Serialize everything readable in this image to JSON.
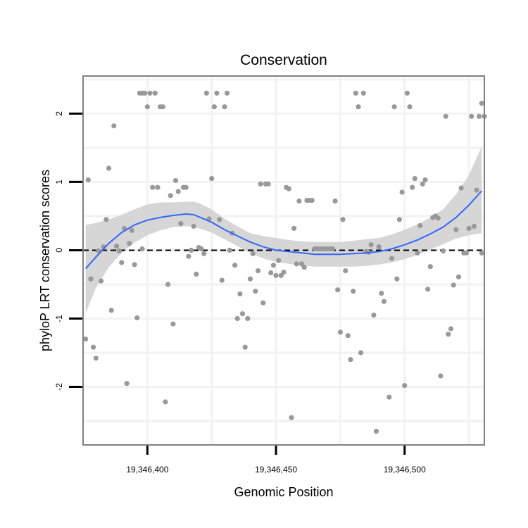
{
  "chart_data": {
    "type": "scatter",
    "title": "Conservation",
    "xlabel": "Genomic Position",
    "ylabel": "phyloP LRT conservation scores",
    "xlim": [
      19346375,
      19346531
    ],
    "ylim": [
      -2.85,
      2.55
    ],
    "x_ticks": [
      {
        "value": 19346400,
        "label": "19,346,400"
      },
      {
        "value": 19346450,
        "label": "19,346,450"
      },
      {
        "value": 19346500,
        "label": "19,346,500"
      }
    ],
    "y_ticks": [
      {
        "value": 2,
        "label": "2"
      },
      {
        "value": 1,
        "label": "1"
      },
      {
        "value": 0,
        "label": "0"
      },
      {
        "value": -1,
        "label": "-1"
      },
      {
        "value": -2,
        "label": "-2"
      }
    ],
    "reference_line": {
      "y": 0,
      "style": "dashed",
      "color": "#000000"
    },
    "colors": {
      "points": "#999999",
      "smooth_line": "#3366ff",
      "confidence_band": "#d6d6d6",
      "panel_border": "#808080",
      "grid": "#f2f2f2"
    },
    "points": [
      {
        "x": 19346376,
        "y": -1.3
      },
      {
        "x": 19346377,
        "y": 1.03
      },
      {
        "x": 19346378,
        "y": -0.42
      },
      {
        "x": 19346379,
        "y": -1.42
      },
      {
        "x": 19346380,
        "y": -1.58
      },
      {
        "x": 19346381,
        "y": -0.01
      },
      {
        "x": 19346382,
        "y": -0.45
      },
      {
        "x": 19346383,
        "y": 0.05
      },
      {
        "x": 19346384,
        "y": 0.45
      },
      {
        "x": 19346385,
        "y": 1.2
      },
      {
        "x": 19346386,
        "y": -0.88
      },
      {
        "x": 19346387,
        "y": 1.82
      },
      {
        "x": 19346388,
        "y": 0.06
      },
      {
        "x": 19346389,
        "y": -0.01
      },
      {
        "x": 19346390,
        "y": -0.18
      },
      {
        "x": 19346391,
        "y": 0.32
      },
      {
        "x": 19346392,
        "y": -1.95
      },
      {
        "x": 19346393,
        "y": 0.1
      },
      {
        "x": 19346394,
        "y": 0.29
      },
      {
        "x": 19346395,
        "y": -0.21
      },
      {
        "x": 19346396,
        "y": -0.99
      },
      {
        "x": 19346397,
        "y": 2.3
      },
      {
        "x": 19346398,
        "y": 0.02
      },
      {
        "x": 19346398,
        "y": 2.3
      },
      {
        "x": 19346399,
        "y": 2.3
      },
      {
        "x": 19346400,
        "y": 2.1
      },
      {
        "x": 19346401,
        "y": 2.3
      },
      {
        "x": 19346402,
        "y": 0.92
      },
      {
        "x": 19346403,
        "y": 2.3
      },
      {
        "x": 19346404,
        "y": 0.92
      },
      {
        "x": 19346405,
        "y": 2.1
      },
      {
        "x": 19346406,
        "y": 2.1
      },
      {
        "x": 19346407,
        "y": -2.22
      },
      {
        "x": 19346408,
        "y": -0.5
      },
      {
        "x": 19346409,
        "y": 0.8
      },
      {
        "x": 19346410,
        "y": -1.08
      },
      {
        "x": 19346411,
        "y": 1.02
      },
      {
        "x": 19346412,
        "y": 0.86
      },
      {
        "x": 19346413,
        "y": 0.39
      },
      {
        "x": 19346414,
        "y": 0.92
      },
      {
        "x": 19346415,
        "y": 0.92
      },
      {
        "x": 19346416,
        "y": -0.09
      },
      {
        "x": 19346417,
        "y": 0.0
      },
      {
        "x": 19346418,
        "y": 0.35
      },
      {
        "x": 19346419,
        "y": -0.35
      },
      {
        "x": 19346420,
        "y": 0.04
      },
      {
        "x": 19346421,
        "y": 0.02
      },
      {
        "x": 19346422,
        "y": -0.05
      },
      {
        "x": 19346423,
        "y": 2.3
      },
      {
        "x": 19346424,
        "y": 0.46
      },
      {
        "x": 19346425,
        "y": 1.05
      },
      {
        "x": 19346426,
        "y": 2.1
      },
      {
        "x": 19346427,
        "y": 2.3
      },
      {
        "x": 19346428,
        "y": 0.45
      },
      {
        "x": 19346429,
        "y": -0.44
      },
      {
        "x": 19346430,
        "y": 2.1
      },
      {
        "x": 19346431,
        "y": 2.3
      },
      {
        "x": 19346432,
        "y": 0.0
      },
      {
        "x": 19346433,
        "y": 0.25
      },
      {
        "x": 19346434,
        "y": -0.22
      },
      {
        "x": 19346435,
        "y": -1.0
      },
      {
        "x": 19346436,
        "y": -0.64
      },
      {
        "x": 19346437,
        "y": -0.93
      },
      {
        "x": 19346438,
        "y": -1.42
      },
      {
        "x": 19346439,
        "y": -1.0
      },
      {
        "x": 19346440,
        "y": -0.42
      },
      {
        "x": 19346441,
        "y": -0.05
      },
      {
        "x": 19346442,
        "y": -0.6
      },
      {
        "x": 19346443,
        "y": -0.3
      },
      {
        "x": 19346444,
        "y": 0.97
      },
      {
        "x": 19346445,
        "y": -0.77
      },
      {
        "x": 19346446,
        "y": 0.97
      },
      {
        "x": 19346447,
        "y": 0.97
      },
      {
        "x": 19346448,
        "y": -0.33
      },
      {
        "x": 19346449,
        "y": -0.22
      },
      {
        "x": 19346450,
        "y": -0.37
      },
      {
        "x": 19346451,
        "y": -0.15
      },
      {
        "x": 19346452,
        "y": -0.37
      },
      {
        "x": 19346453,
        "y": -0.32
      },
      {
        "x": 19346454,
        "y": 0.92
      },
      {
        "x": 19346455,
        "y": 0.9
      },
      {
        "x": 19346456,
        "y": -2.45
      },
      {
        "x": 19346457,
        "y": 0.32
      },
      {
        "x": 19346458,
        "y": -0.2
      },
      {
        "x": 19346459,
        "y": 0.72
      },
      {
        "x": 19346460,
        "y": -0.2
      },
      {
        "x": 19346461,
        "y": -0.25
      },
      {
        "x": 19346462,
        "y": 0.73
      },
      {
        "x": 19346463,
        "y": 0.73
      },
      {
        "x": 19346464,
        "y": 0.73
      },
      {
        "x": 19346465,
        "y": 0.02
      },
      {
        "x": 19346466,
        "y": 0.02
      },
      {
        "x": 19346467,
        "y": 0.02
      },
      {
        "x": 19346468,
        "y": 0.02
      },
      {
        "x": 19346469,
        "y": 0.02
      },
      {
        "x": 19346470,
        "y": 0.02
      },
      {
        "x": 19346471,
        "y": 0.02
      },
      {
        "x": 19346472,
        "y": 0.02
      },
      {
        "x": 19346473,
        "y": 0.72
      },
      {
        "x": 19346474,
        "y": -0.58
      },
      {
        "x": 19346475,
        "y": -1.2
      },
      {
        "x": 19346476,
        "y": 0.45
      },
      {
        "x": 19346477,
        "y": -0.3
      },
      {
        "x": 19346478,
        "y": -1.25
      },
      {
        "x": 19346479,
        "y": -1.6
      },
      {
        "x": 19346480,
        "y": -0.6
      },
      {
        "x": 19346481,
        "y": 2.3
      },
      {
        "x": 19346482,
        "y": 2.1
      },
      {
        "x": 19346483,
        "y": -1.5
      },
      {
        "x": 19346484,
        "y": 2.3
      },
      {
        "x": 19346485,
        "y": -0.02
      },
      {
        "x": 19346486,
        "y": -0.03
      },
      {
        "x": 19346487,
        "y": 0.08
      },
      {
        "x": 19346488,
        "y": -0.95
      },
      {
        "x": 19346489,
        "y": -2.65
      },
      {
        "x": 19346490,
        "y": 0.05
      },
      {
        "x": 19346491,
        "y": -0.63
      },
      {
        "x": 19346492,
        "y": -0.75
      },
      {
        "x": 19346494,
        "y": -2.15
      },
      {
        "x": 19346495,
        "y": -0.12
      },
      {
        "x": 19346496,
        "y": 2.1
      },
      {
        "x": 19346497,
        "y": -0.42
      },
      {
        "x": 19346498,
        "y": 0.45
      },
      {
        "x": 19346499,
        "y": 0.85
      },
      {
        "x": 19346500,
        "y": -1.98
      },
      {
        "x": 19346501,
        "y": 2.3
      },
      {
        "x": 19346502,
        "y": 2.1
      },
      {
        "x": 19346503,
        "y": 0.92
      },
      {
        "x": 19346504,
        "y": 1.05
      },
      {
        "x": 19346505,
        "y": -0.04
      },
      {
        "x": 19346506,
        "y": 0.36
      },
      {
        "x": 19346507,
        "y": 0.97
      },
      {
        "x": 19346508,
        "y": 1.03
      },
      {
        "x": 19346509,
        "y": -0.57
      },
      {
        "x": 19346510,
        "y": -0.24
      },
      {
        "x": 19346511,
        "y": 0.48
      },
      {
        "x": 19346512,
        "y": 0.5
      },
      {
        "x": 19346513,
        "y": 0.47
      },
      {
        "x": 19346514,
        "y": -1.84
      },
      {
        "x": 19346515,
        "y": -0.01
      },
      {
        "x": 19346516,
        "y": 1.96
      },
      {
        "x": 19346517,
        "y": -1.23
      },
      {
        "x": 19346518,
        "y": -1.15
      },
      {
        "x": 19346519,
        "y": -0.51
      },
      {
        "x": 19346520,
        "y": 0.3
      },
      {
        "x": 19346521,
        "y": -0.39
      },
      {
        "x": 19346522,
        "y": 0.91
      },
      {
        "x": 19346523,
        "y": -0.04
      },
      {
        "x": 19346524,
        "y": -0.04
      },
      {
        "x": 19346525,
        "y": 0.32
      },
      {
        "x": 19346526,
        "y": 1.96
      },
      {
        "x": 19346527,
        "y": 0.35
      },
      {
        "x": 19346528,
        "y": 0.88
      },
      {
        "x": 19346529,
        "y": 1.96
      },
      {
        "x": 19346530,
        "y": -0.04
      },
      {
        "x": 19346530,
        "y": 2.15
      },
      {
        "x": 19346531,
        "y": 1.96
      }
    ],
    "smooth_fit": {
      "method": "loess",
      "x": [
        19346376,
        19346380,
        19346385,
        19346390,
        19346395,
        19346400,
        19346405,
        19346410,
        19346415,
        19346418,
        19346420,
        19346425,
        19346430,
        19346435,
        19346440,
        19346445,
        19346450,
        19346455,
        19346460,
        19346465,
        19346470,
        19346475,
        19346480,
        19346485,
        19346490,
        19346495,
        19346500,
        19346505,
        19346510,
        19346515,
        19346520,
        19346525,
        19346530
      ],
      "y": [
        -0.27,
        -0.1,
        0.1,
        0.26,
        0.37,
        0.44,
        0.48,
        0.51,
        0.53,
        0.52,
        0.49,
        0.41,
        0.3,
        0.21,
        0.12,
        0.05,
        0.0,
        -0.02,
        -0.04,
        -0.06,
        -0.06,
        -0.06,
        -0.05,
        -0.04,
        -0.02,
        0.02,
        0.08,
        0.15,
        0.24,
        0.34,
        0.48,
        0.66,
        0.87
      ],
      "lower": [
        -0.92,
        -0.55,
        -0.25,
        -0.04,
        0.11,
        0.22,
        0.29,
        0.34,
        0.35,
        0.35,
        0.32,
        0.26,
        0.16,
        0.06,
        -0.04,
        -0.12,
        -0.17,
        -0.2,
        -0.22,
        -0.24,
        -0.24,
        -0.24,
        -0.24,
        -0.23,
        -0.21,
        -0.18,
        -0.13,
        -0.07,
        0.01,
        0.09,
        0.17,
        0.22,
        0.25
      ],
      "upper": [
        0.37,
        0.4,
        0.45,
        0.52,
        0.6,
        0.67,
        0.7,
        0.7,
        0.71,
        0.71,
        0.69,
        0.6,
        0.46,
        0.35,
        0.25,
        0.21,
        0.18,
        0.15,
        0.13,
        0.12,
        0.12,
        0.12,
        0.14,
        0.16,
        0.18,
        0.23,
        0.3,
        0.38,
        0.48,
        0.6,
        0.82,
        1.1,
        1.52
      ]
    }
  }
}
